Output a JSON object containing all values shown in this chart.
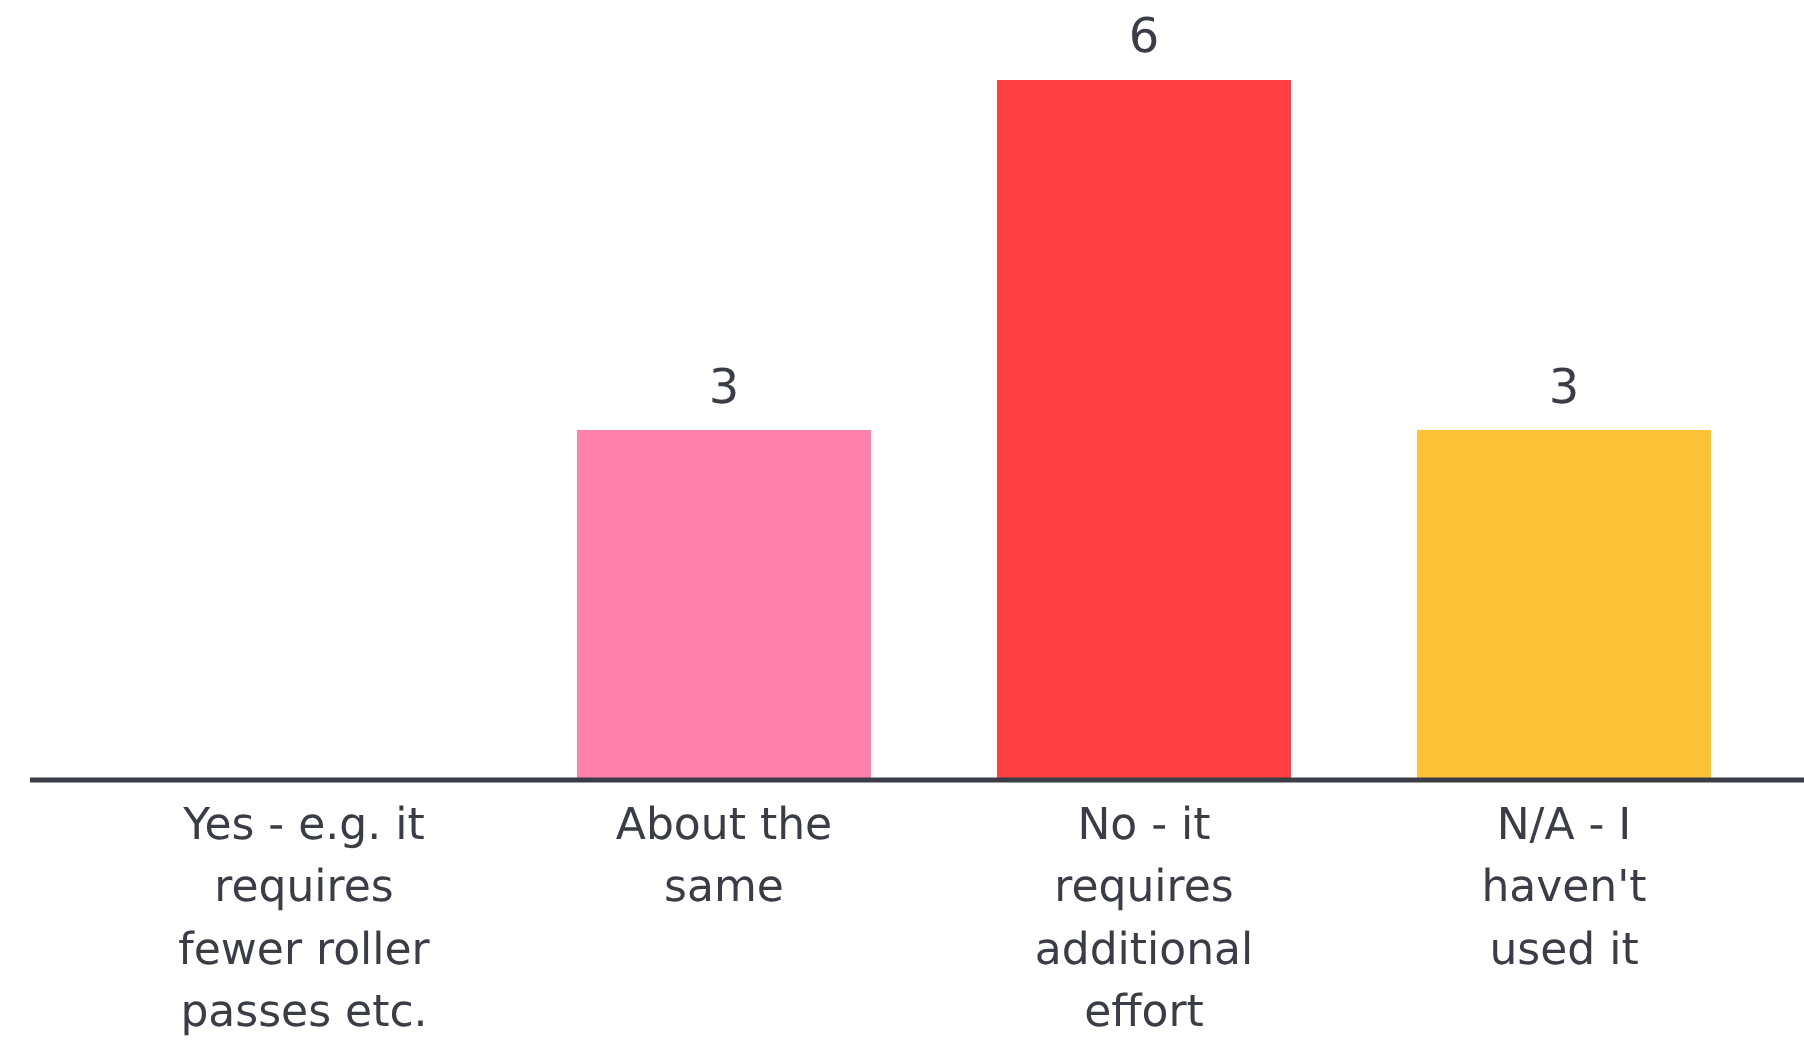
{
  "chart_data": {
    "type": "bar",
    "categories": [
      "Yes - e.g. it requires fewer roller passes etc.",
      "About the same",
      "No - it requires additional effort",
      "N/A - I haven't used it"
    ],
    "values": [
      0,
      3,
      6,
      3
    ],
    "colors": [
      "#ff80aa",
      "#ff80aa",
      "#ff4040",
      "#fdc338"
    ],
    "value_labels": [
      null,
      "3",
      "6",
      "3"
    ],
    "tick_labels": "x"
  }
}
